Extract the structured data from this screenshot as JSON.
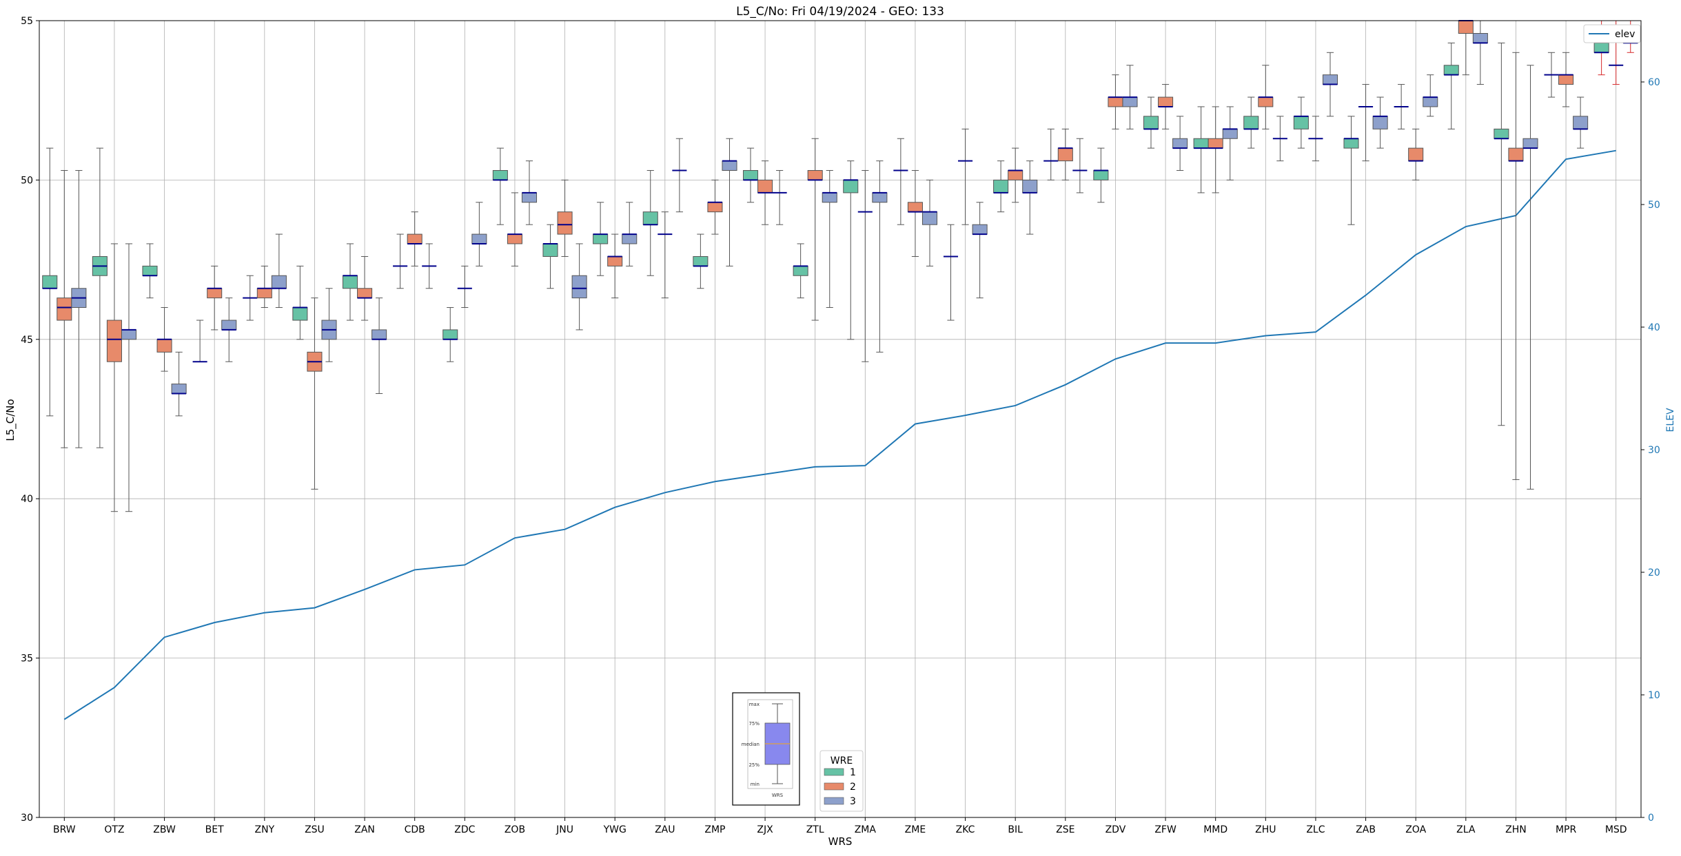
{
  "chart_data": {
    "type": "box",
    "title": "L5_C/No: Fri 04/19/2024 - GEO: 133",
    "xlabel": "WRS",
    "ylabel": "L5_C/No",
    "y2label": "ELEV",
    "ylim": [
      30,
      55
    ],
    "y2lim": [
      0,
      65
    ],
    "yticks": [
      30,
      35,
      40,
      45,
      50,
      55
    ],
    "y2ticks": [
      0,
      10,
      20,
      30,
      40,
      50,
      60
    ],
    "grid": true,
    "categories": [
      "BRW",
      "OTZ",
      "ZBW",
      "BET",
      "ZNY",
      "ZSU",
      "ZAN",
      "CDB",
      "ZDC",
      "ZOB",
      "JNU",
      "YWG",
      "ZAU",
      "ZMP",
      "ZJX",
      "ZTL",
      "ZMA",
      "ZME",
      "ZKC",
      "BIL",
      "ZSE",
      "ZDV",
      "ZFW",
      "MMD",
      "ZHU",
      "ZLC",
      "ZAB",
      "ZOA",
      "ZLA",
      "ZHN",
      "MPR",
      "MSD"
    ],
    "colors": {
      "1": "#66c2a5",
      "2": "#e78a6a",
      "3": "#8da0cb",
      "elev": "#1f77b4",
      "median": "#00008b",
      "whisker": "#555555",
      "outlier_whisker": "#d62728"
    },
    "legend": {
      "title": "WRE",
      "entries": [
        "1",
        "2",
        "3"
      ],
      "placement": "lower-center"
    },
    "legend2": {
      "entries": [
        "elev"
      ],
      "placement": "upper-right"
    },
    "inset_key": {
      "labels": [
        "max",
        "75%",
        "median",
        "25%",
        "min",
        "WRS"
      ]
    },
    "series": [
      {
        "name": "1",
        "boxes": [
          {
            "site": "BRW",
            "min": 42.6,
            "q1": 46.6,
            "median": 46.6,
            "q3": 47.0,
            "max": 51.0
          },
          {
            "site": "OTZ",
            "min": 41.6,
            "q1": 47.0,
            "median": 47.3,
            "q3": 47.6,
            "max": 51.0
          },
          {
            "site": "ZBW",
            "min": 46.3,
            "q1": 47.0,
            "median": 47.0,
            "q3": 47.3,
            "max": 48.0
          },
          {
            "site": "BET",
            "min": 44.3,
            "q1": 44.3,
            "median": 44.3,
            "q3": 44.3,
            "max": 45.6
          },
          {
            "site": "ZNY",
            "min": 45.6,
            "q1": 46.3,
            "median": 46.3,
            "q3": 46.3,
            "max": 47.0
          },
          {
            "site": "ZSU",
            "min": 45.0,
            "q1": 45.6,
            "median": 46.0,
            "q3": 46.0,
            "max": 47.3
          },
          {
            "site": "ZAN",
            "min": 45.6,
            "q1": 46.6,
            "median": 47.0,
            "q3": 47.0,
            "max": 48.0
          },
          {
            "site": "CDB",
            "min": 46.6,
            "q1": 47.3,
            "median": 47.3,
            "q3": 47.3,
            "max": 48.3
          },
          {
            "site": "ZDC",
            "min": 44.3,
            "q1": 45.0,
            "median": 45.0,
            "q3": 45.3,
            "max": 46.0
          },
          {
            "site": "ZOB",
            "min": 48.6,
            "q1": 50.0,
            "median": 50.0,
            "q3": 50.3,
            "max": 51.0
          },
          {
            "site": "JNU",
            "min": 46.6,
            "q1": 47.6,
            "median": 48.0,
            "q3": 48.0,
            "max": 48.6
          },
          {
            "site": "YWG",
            "min": 47.0,
            "q1": 48.0,
            "median": 48.3,
            "q3": 48.3,
            "max": 49.3
          },
          {
            "site": "ZAU",
            "min": 47.0,
            "q1": 48.6,
            "median": 48.6,
            "q3": 49.0,
            "max": 50.3
          },
          {
            "site": "ZMP",
            "min": 46.6,
            "q1": 47.3,
            "median": 47.3,
            "q3": 47.6,
            "max": 48.3
          },
          {
            "site": "ZJX",
            "min": 49.3,
            "q1": 50.0,
            "median": 50.0,
            "q3": 50.3,
            "max": 51.0
          },
          {
            "site": "ZTL",
            "min": 46.3,
            "q1": 47.0,
            "median": 47.3,
            "q3": 47.3,
            "max": 48.0
          },
          {
            "site": "ZMA",
            "min": 45.0,
            "q1": 49.6,
            "median": 50.0,
            "q3": 50.0,
            "max": 50.6
          },
          {
            "site": "ZME",
            "min": 48.6,
            "q1": 50.3,
            "median": 50.3,
            "q3": 50.3,
            "max": 51.3
          },
          {
            "site": "ZKC",
            "min": 45.6,
            "q1": 47.6,
            "median": 47.6,
            "q3": 47.6,
            "max": 48.6
          },
          {
            "site": "BIL",
            "min": 49.0,
            "q1": 49.6,
            "median": 49.6,
            "q3": 50.0,
            "max": 50.6
          },
          {
            "site": "ZSE",
            "min": 50.0,
            "q1": 50.6,
            "median": 50.6,
            "q3": 50.6,
            "max": 51.6
          },
          {
            "site": "ZDV",
            "min": 49.3,
            "q1": 50.0,
            "median": 50.3,
            "q3": 50.3,
            "max": 51.0
          },
          {
            "site": "ZFW",
            "min": 51.0,
            "q1": 51.6,
            "median": 51.6,
            "q3": 52.0,
            "max": 52.6
          },
          {
            "site": "MMD",
            "min": 49.6,
            "q1": 51.0,
            "median": 51.0,
            "q3": 51.3,
            "max": 52.3
          },
          {
            "site": "ZHU",
            "min": 51.0,
            "q1": 51.6,
            "median": 51.6,
            "q3": 52.0,
            "max": 52.6
          },
          {
            "site": "ZLC",
            "min": 51.0,
            "q1": 51.6,
            "median": 52.0,
            "q3": 52.0,
            "max": 52.6
          },
          {
            "site": "ZAB",
            "min": 48.6,
            "q1": 51.0,
            "median": 51.3,
            "q3": 51.3,
            "max": 52.0
          },
          {
            "site": "ZOA",
            "min": 51.6,
            "q1": 52.3,
            "median": 52.3,
            "q3": 52.3,
            "max": 53.0
          },
          {
            "site": "ZLA",
            "min": 51.6,
            "q1": 53.3,
            "median": 53.3,
            "q3": 53.6,
            "max": 54.3
          },
          {
            "site": "ZHN",
            "min": 42.3,
            "q1": 51.3,
            "median": 51.3,
            "q3": 51.6,
            "max": 54.3
          },
          {
            "site": "MPR",
            "min": 52.6,
            "q1": 53.3,
            "median": 53.3,
            "q3": 53.3,
            "max": 54.0
          },
          {
            "site": "MSD",
            "min": 53.3,
            "q1": 54.0,
            "median": 54.0,
            "q3": 54.3,
            "max": 55.0,
            "red_whisker": true
          }
        ]
      },
      {
        "name": "2",
        "boxes": [
          {
            "site": "BRW",
            "min": 41.6,
            "q1": 45.6,
            "median": 46.0,
            "q3": 46.3,
            "max": 50.3
          },
          {
            "site": "OTZ",
            "min": 39.6,
            "q1": 44.3,
            "median": 45.0,
            "q3": 45.6,
            "max": 48.0
          },
          {
            "site": "ZBW",
            "min": 44.0,
            "q1": 44.6,
            "median": 45.0,
            "q3": 45.0,
            "max": 46.0
          },
          {
            "site": "BET",
            "min": 45.3,
            "q1": 46.3,
            "median": 46.6,
            "q3": 46.6,
            "max": 47.3
          },
          {
            "site": "ZNY",
            "min": 46.0,
            "q1": 46.3,
            "median": 46.6,
            "q3": 46.6,
            "max": 47.3
          },
          {
            "site": "ZSU",
            "min": 40.3,
            "q1": 44.0,
            "median": 44.3,
            "q3": 44.6,
            "max": 46.3
          },
          {
            "site": "ZAN",
            "min": 45.6,
            "q1": 46.3,
            "median": 46.3,
            "q3": 46.6,
            "max": 47.6
          },
          {
            "site": "CDB",
            "min": 47.3,
            "q1": 48.0,
            "median": 48.0,
            "q3": 48.3,
            "max": 49.0
          },
          {
            "site": "ZDC",
            "min": 46.0,
            "q1": 46.6,
            "median": 46.6,
            "q3": 46.6,
            "max": 47.3
          },
          {
            "site": "ZOB",
            "min": 47.3,
            "q1": 48.0,
            "median": 48.3,
            "q3": 48.3,
            "max": 49.6
          },
          {
            "site": "JNU",
            "min": 47.6,
            "q1": 48.3,
            "median": 48.6,
            "q3": 49.0,
            "max": 50.0
          },
          {
            "site": "YWG",
            "min": 46.3,
            "q1": 47.3,
            "median": 47.6,
            "q3": 47.6,
            "max": 48.3
          },
          {
            "site": "ZAU",
            "min": 46.3,
            "q1": 48.3,
            "median": 48.3,
            "q3": 48.3,
            "max": 49.0
          },
          {
            "site": "ZMP",
            "min": 48.3,
            "q1": 49.0,
            "median": 49.3,
            "q3": 49.3,
            "max": 50.0
          },
          {
            "site": "ZJX",
            "min": 48.6,
            "q1": 49.6,
            "median": 49.6,
            "q3": 50.0,
            "max": 50.6
          },
          {
            "site": "ZTL",
            "min": 45.6,
            "q1": 50.0,
            "median": 50.0,
            "q3": 50.3,
            "max": 51.3
          },
          {
            "site": "ZMA",
            "min": 44.3,
            "q1": 49.0,
            "median": 49.0,
            "q3": 49.0,
            "max": 50.3
          },
          {
            "site": "ZME",
            "min": 47.6,
            "q1": 49.0,
            "median": 49.0,
            "q3": 49.3,
            "max": 50.3
          },
          {
            "site": "ZKC",
            "min": 48.6,
            "q1": 50.6,
            "median": 50.6,
            "q3": 50.6,
            "max": 51.6
          },
          {
            "site": "BIL",
            "min": 49.3,
            "q1": 50.0,
            "median": 50.3,
            "q3": 50.3,
            "max": 51.0
          },
          {
            "site": "ZSE",
            "min": 50.0,
            "q1": 50.6,
            "median": 51.0,
            "q3": 51.0,
            "max": 51.6
          },
          {
            "site": "ZDV",
            "min": 51.6,
            "q1": 52.3,
            "median": 52.6,
            "q3": 52.6,
            "max": 53.3
          },
          {
            "site": "ZFW",
            "min": 51.6,
            "q1": 52.3,
            "median": 52.3,
            "q3": 52.6,
            "max": 53.0
          },
          {
            "site": "MMD",
            "min": 49.6,
            "q1": 51.0,
            "median": 51.0,
            "q3": 51.3,
            "max": 52.3
          },
          {
            "site": "ZHU",
            "min": 51.6,
            "q1": 52.3,
            "median": 52.6,
            "q3": 52.6,
            "max": 53.6
          },
          {
            "site": "ZLC",
            "min": 50.6,
            "q1": 51.3,
            "median": 51.3,
            "q3": 51.3,
            "max": 52.0
          },
          {
            "site": "ZAB",
            "min": 50.6,
            "q1": 52.3,
            "median": 52.3,
            "q3": 52.3,
            "max": 53.0
          },
          {
            "site": "ZOA",
            "min": 50.0,
            "q1": 50.6,
            "median": 50.6,
            "q3": 51.0,
            "max": 51.6
          },
          {
            "site": "ZLA",
            "min": 53.3,
            "q1": 54.6,
            "median": 55.0,
            "q3": 55.0,
            "max": 55.0
          },
          {
            "site": "ZHN",
            "min": 40.6,
            "q1": 50.6,
            "median": 50.6,
            "q3": 51.0,
            "max": 54.0
          },
          {
            "site": "MPR",
            "min": 52.3,
            "q1": 53.0,
            "median": 53.3,
            "q3": 53.3,
            "max": 54.0
          },
          {
            "site": "MSD",
            "min": 53.0,
            "q1": 53.6,
            "median": 53.6,
            "q3": 53.6,
            "max": 55.0,
            "red_whisker": true
          }
        ]
      },
      {
        "name": "3",
        "boxes": [
          {
            "site": "BRW",
            "min": 41.6,
            "q1": 46.0,
            "median": 46.3,
            "q3": 46.6,
            "max": 50.3
          },
          {
            "site": "OTZ",
            "min": 39.6,
            "q1": 45.0,
            "median": 45.3,
            "q3": 45.3,
            "max": 48.0
          },
          {
            "site": "ZBW",
            "min": 42.6,
            "q1": 43.3,
            "median": 43.3,
            "q3": 43.6,
            "max": 44.6
          },
          {
            "site": "BET",
            "min": 44.3,
            "q1": 45.3,
            "median": 45.3,
            "q3": 45.6,
            "max": 46.3
          },
          {
            "site": "ZNY",
            "min": 46.0,
            "q1": 46.6,
            "median": 46.6,
            "q3": 47.0,
            "max": 48.3
          },
          {
            "site": "ZSU",
            "min": 44.3,
            "q1": 45.0,
            "median": 45.3,
            "q3": 45.6,
            "max": 46.6
          },
          {
            "site": "ZAN",
            "min": 43.3,
            "q1": 45.0,
            "median": 45.0,
            "q3": 45.3,
            "max": 46.3
          },
          {
            "site": "CDB",
            "min": 46.6,
            "q1": 47.3,
            "median": 47.3,
            "q3": 47.3,
            "max": 48.0
          },
          {
            "site": "ZDC",
            "min": 47.3,
            "q1": 48.0,
            "median": 48.0,
            "q3": 48.3,
            "max": 49.3
          },
          {
            "site": "ZOB",
            "min": 48.6,
            "q1": 49.3,
            "median": 49.6,
            "q3": 49.6,
            "max": 50.6
          },
          {
            "site": "JNU",
            "min": 45.3,
            "q1": 46.3,
            "median": 46.6,
            "q3": 47.0,
            "max": 48.0
          },
          {
            "site": "YWG",
            "min": 47.3,
            "q1": 48.0,
            "median": 48.3,
            "q3": 48.3,
            "max": 49.3
          },
          {
            "site": "ZAU",
            "min": 49.0,
            "q1": 50.3,
            "median": 50.3,
            "q3": 50.3,
            "max": 51.3
          },
          {
            "site": "ZMP",
            "min": 47.3,
            "q1": 50.3,
            "median": 50.6,
            "q3": 50.6,
            "max": 51.3
          },
          {
            "site": "ZJX",
            "min": 48.6,
            "q1": 49.6,
            "median": 49.6,
            "q3": 49.6,
            "max": 50.3
          },
          {
            "site": "ZTL",
            "min": 46.0,
            "q1": 49.3,
            "median": 49.6,
            "q3": 49.6,
            "max": 50.3
          },
          {
            "site": "ZMA",
            "min": 44.6,
            "q1": 49.3,
            "median": 49.6,
            "q3": 49.6,
            "max": 50.6
          },
          {
            "site": "ZME",
            "min": 47.3,
            "q1": 48.6,
            "median": 49.0,
            "q3": 49.0,
            "max": 50.0
          },
          {
            "site": "ZKC",
            "min": 46.3,
            "q1": 48.3,
            "median": 48.3,
            "q3": 48.6,
            "max": 49.3
          },
          {
            "site": "BIL",
            "min": 48.3,
            "q1": 49.6,
            "median": 49.6,
            "q3": 50.0,
            "max": 50.6
          },
          {
            "site": "ZSE",
            "min": 49.6,
            "q1": 50.3,
            "median": 50.3,
            "q3": 50.3,
            "max": 51.3
          },
          {
            "site": "ZDV",
            "min": 51.6,
            "q1": 52.3,
            "median": 52.6,
            "q3": 52.6,
            "max": 53.6
          },
          {
            "site": "ZFW",
            "min": 50.3,
            "q1": 51.0,
            "median": 51.0,
            "q3": 51.3,
            "max": 52.0
          },
          {
            "site": "MMD",
            "min": 50.0,
            "q1": 51.3,
            "median": 51.6,
            "q3": 51.6,
            "max": 52.3
          },
          {
            "site": "ZHU",
            "min": 50.6,
            "q1": 51.3,
            "median": 51.3,
            "q3": 51.3,
            "max": 52.0
          },
          {
            "site": "ZLC",
            "min": 52.0,
            "q1": 53.0,
            "median": 53.0,
            "q3": 53.3,
            "max": 54.0
          },
          {
            "site": "ZAB",
            "min": 51.0,
            "q1": 51.6,
            "median": 52.0,
            "q3": 52.0,
            "max": 52.6
          },
          {
            "site": "ZOA",
            "min": 52.0,
            "q1": 52.3,
            "median": 52.6,
            "q3": 52.6,
            "max": 53.3
          },
          {
            "site": "ZLA",
            "min": 53.0,
            "q1": 54.3,
            "median": 54.3,
            "q3": 54.6,
            "max": 55.0
          },
          {
            "site": "ZHN",
            "min": 40.3,
            "q1": 51.0,
            "median": 51.0,
            "q3": 51.3,
            "max": 53.6
          },
          {
            "site": "MPR",
            "min": 51.0,
            "q1": 51.6,
            "median": 51.6,
            "q3": 52.0,
            "max": 52.6
          },
          {
            "site": "MSD",
            "min": 54.0,
            "q1": 54.3,
            "median": 54.3,
            "q3": 54.6,
            "max": 55.0,
            "red_whisker": true
          }
        ]
      }
    ],
    "elev": {
      "name": "elev",
      "x": [
        "BRW",
        "OTZ",
        "ZBW",
        "BET",
        "ZNY",
        "ZSU",
        "ZAN",
        "CDB",
        "ZDC",
        "ZOB",
        "JNU",
        "YWG",
        "ZAU",
        "ZMP",
        "ZJX",
        "ZTL",
        "ZMA",
        "ZME",
        "ZKC",
        "BIL",
        "ZSE",
        "ZDV",
        "ZFW",
        "MMD",
        "ZHU",
        "ZLC",
        "ZAB",
        "ZOA",
        "ZLA",
        "ZHN",
        "MPR",
        "MSD"
      ],
      "values": [
        8.0,
        10.6,
        14.7,
        15.9,
        16.7,
        17.1,
        18.6,
        20.2,
        20.6,
        22.8,
        23.5,
        25.3,
        26.5,
        27.4,
        28.0,
        28.6,
        28.7,
        32.1,
        32.8,
        33.6,
        35.3,
        37.4,
        38.7,
        38.7,
        39.3,
        39.6,
        42.6,
        45.9,
        48.2,
        49.1,
        53.7,
        54.4
      ]
    }
  }
}
